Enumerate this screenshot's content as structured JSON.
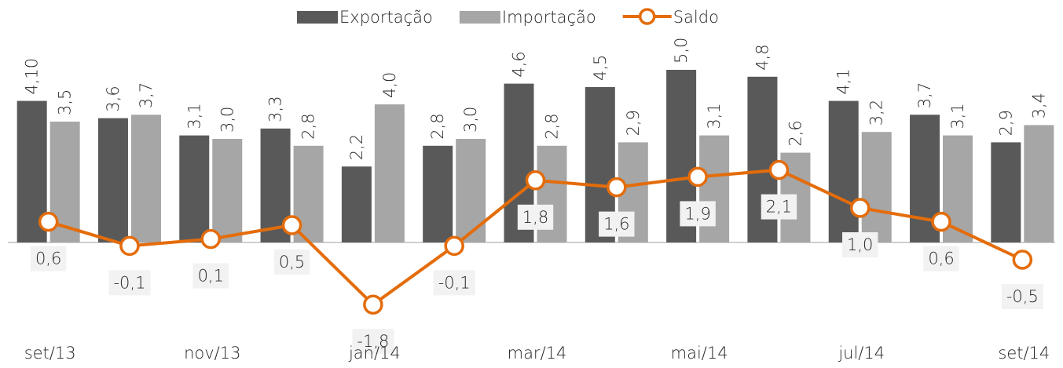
{
  "chart_data": {
    "type": "bar_line",
    "categories": [
      "set/13",
      null,
      "nov/13",
      null,
      "jan/14",
      null,
      "mar/14",
      null,
      "mai/14",
      null,
      "jul/14",
      null,
      "set/14"
    ],
    "series": [
      {
        "name": "Exportação",
        "type": "bar",
        "color": "#595959",
        "values": [
          4.1,
          3.6,
          3.1,
          3.3,
          2.2,
          2.8,
          4.6,
          4.5,
          5.0,
          4.8,
          4.1,
          3.7,
          2.9
        ],
        "value_labels": [
          "4,10",
          "3,6",
          "3,1",
          "3,3",
          "2,2",
          "2,8",
          "4,6",
          "4,5",
          "5,0",
          "4,8",
          "4,1",
          "3,7",
          "2,9"
        ]
      },
      {
        "name": "Importação",
        "type": "bar",
        "color": "#a6a6a6",
        "values": [
          3.5,
          3.7,
          3.0,
          2.8,
          4.0,
          3.0,
          2.8,
          2.9,
          3.1,
          2.6,
          3.2,
          3.1,
          3.4
        ],
        "value_labels": [
          "3,5",
          "3,7",
          "3,0",
          "2,8",
          "4,0",
          "3,0",
          "2,8",
          "2,9",
          "3,1",
          "2,6",
          "3,2",
          "3,1",
          "3,4"
        ]
      },
      {
        "name": "Saldo",
        "type": "line",
        "color": "#e46c0a",
        "negative_label_color": "#ff0000",
        "values": [
          0.6,
          -0.1,
          0.1,
          0.5,
          -1.8,
          -0.1,
          1.8,
          1.6,
          1.9,
          2.1,
          1.0,
          0.6,
          -0.5
        ],
        "value_labels": [
          "0,6",
          "-0,1",
          "0,1",
          "0,5",
          "-1,8",
          "-0,1",
          "1,8",
          "1,6",
          "1,9",
          "2,1",
          "1,0",
          "0,6",
          "-0,5"
        ]
      }
    ],
    "ylim": [
      -3,
      6.5
    ],
    "legend": "top",
    "grid": false
  }
}
